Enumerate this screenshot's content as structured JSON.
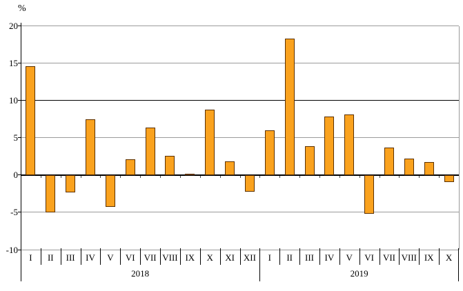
{
  "chart_data": {
    "type": "bar",
    "title": "",
    "ylabel": "%",
    "xlabel": "",
    "ylim": [
      -10,
      20
    ],
    "yticks": [
      20,
      15,
      10,
      5,
      0,
      -5,
      -10
    ],
    "emphasized_gridlines": [
      10,
      0
    ],
    "grid_on": true,
    "legend": "none",
    "groups": [
      {
        "year": "2018",
        "categories": [
          "I",
          "II",
          "III",
          "IV",
          "V",
          "VI",
          "VII",
          "VIII",
          "IX",
          "X",
          "XI",
          "XII"
        ],
        "values": [
          14.6,
          -5.0,
          -2.3,
          7.5,
          -4.3,
          2.1,
          6.4,
          2.6,
          0.2,
          8.8,
          1.8,
          -2.2
        ]
      },
      {
        "year": "2019",
        "categories": [
          "I",
          "II",
          "III",
          "IV",
          "V",
          "VI",
          "VII",
          "VIII",
          "IX",
          "X"
        ],
        "values": [
          6.0,
          18.3,
          3.9,
          7.8,
          8.1,
          -5.2,
          3.7,
          2.2,
          1.7,
          -0.9
        ]
      }
    ],
    "colors": {
      "bar_fill": "#FAA21E",
      "bar_border": "#5C3000",
      "grid_minor": "#9a9a9a",
      "grid_major": "#000000",
      "axis": "#000000",
      "text": "#000000"
    }
  }
}
